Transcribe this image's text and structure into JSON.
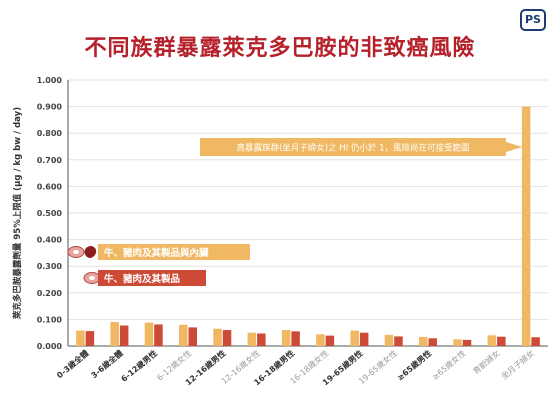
{
  "logo_text": "PS",
  "colors": {
    "title": "#b5212a",
    "series_offal": "#f0b862",
    "series_meat": "#cd4b36",
    "highlight_bar": "#f0b862",
    "axis": "#555555",
    "grid": "#e3e3e3",
    "annotation_bg": "#f0b862",
    "annotation_text": "#ffffff",
    "tick_gray": "#9a9a9a",
    "tick_dark": "#333333"
  },
  "chart_data": {
    "type": "bar",
    "title": "不同族群暴露萊克多巴胺的非致癌風險",
    "ylabel": "萊克多巴胺暴露劑量 95%上限值 (μg / kg bw / day)",
    "ylim": [
      0,
      1.0
    ],
    "yticks": [
      "0.000",
      "0.100",
      "0.200",
      "0.300",
      "0.400",
      "0.500",
      "0.600",
      "0.700",
      "0.800",
      "0.900",
      "1.000"
    ],
    "categories": [
      "0-3歲全體",
      "3-6歲全體",
      "6-12歲男性",
      "6-12歲女性",
      "12-16歲男性",
      "12-16歲女性",
      "16-18歲男性",
      "16-18歲女性",
      "19-65歲男性",
      "19-65歲女性",
      "≥65歲男性",
      "≥65歲女性",
      "育齡婦女",
      "坐月子婦女"
    ],
    "category_tone": [
      "dark",
      "dark",
      "dark",
      "gray",
      "dark",
      "gray",
      "dark",
      "gray",
      "dark",
      "gray",
      "dark",
      "gray",
      "gray",
      "gray"
    ],
    "series": [
      {
        "name": "牛、豬肉及其製品與內臟",
        "values": [
          0.058,
          0.09,
          0.088,
          0.08,
          0.065,
          0.05,
          0.06,
          0.044,
          0.058,
          0.042,
          0.034,
          0.025,
          0.04,
          0.9
        ]
      },
      {
        "name": "牛、豬肉及其製品",
        "values": [
          0.056,
          0.077,
          0.081,
          0.07,
          0.06,
          0.047,
          0.055,
          0.039,
          0.05,
          0.036,
          0.029,
          0.023,
          0.035,
          0.033
        ]
      }
    ],
    "annotation": "高暴露族群(坐月子婦女)之 HI 仍小於 1，風險尚在可接受範圍",
    "legend_position": "left"
  }
}
